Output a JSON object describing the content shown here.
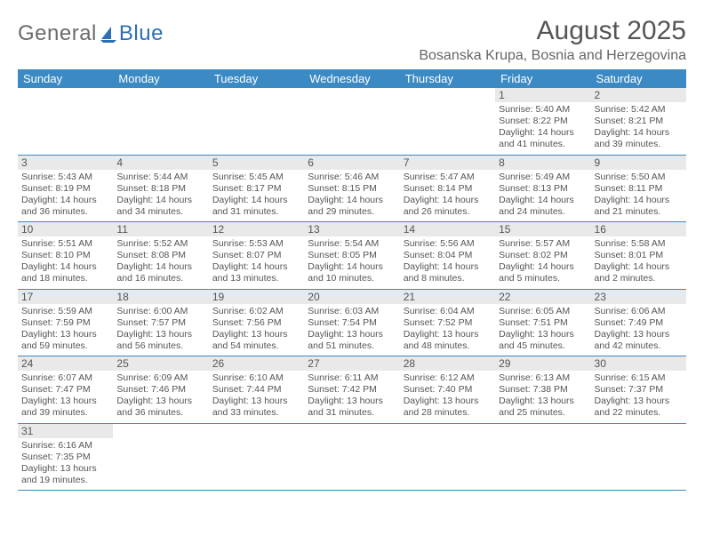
{
  "brand": {
    "part1": "General",
    "part2": "Blue"
  },
  "title": "August 2025",
  "subtitle": "Bosanska Krupa, Bosnia and Herzegovina",
  "colors": {
    "header_bg": "#3b8ac4",
    "header_text": "#ffffff",
    "daynum_bg": "#e9e9e9",
    "text": "#555555",
    "rule": "#3b8ac4",
    "logo_gray": "#6b6b6b",
    "logo_blue": "#2d6fb5"
  },
  "weekdays": [
    "Sunday",
    "Monday",
    "Tuesday",
    "Wednesday",
    "Thursday",
    "Friday",
    "Saturday"
  ],
  "grid": [
    [
      null,
      null,
      null,
      null,
      null,
      {
        "day": "1",
        "sunrise": "Sunrise: 5:40 AM",
        "sunset": "Sunset: 8:22 PM",
        "daylight": "Daylight: 14 hours and 41 minutes."
      },
      {
        "day": "2",
        "sunrise": "Sunrise: 5:42 AM",
        "sunset": "Sunset: 8:21 PM",
        "daylight": "Daylight: 14 hours and 39 minutes."
      }
    ],
    [
      {
        "day": "3",
        "sunrise": "Sunrise: 5:43 AM",
        "sunset": "Sunset: 8:19 PM",
        "daylight": "Daylight: 14 hours and 36 minutes."
      },
      {
        "day": "4",
        "sunrise": "Sunrise: 5:44 AM",
        "sunset": "Sunset: 8:18 PM",
        "daylight": "Daylight: 14 hours and 34 minutes."
      },
      {
        "day": "5",
        "sunrise": "Sunrise: 5:45 AM",
        "sunset": "Sunset: 8:17 PM",
        "daylight": "Daylight: 14 hours and 31 minutes."
      },
      {
        "day": "6",
        "sunrise": "Sunrise: 5:46 AM",
        "sunset": "Sunset: 8:15 PM",
        "daylight": "Daylight: 14 hours and 29 minutes."
      },
      {
        "day": "7",
        "sunrise": "Sunrise: 5:47 AM",
        "sunset": "Sunset: 8:14 PM",
        "daylight": "Daylight: 14 hours and 26 minutes."
      },
      {
        "day": "8",
        "sunrise": "Sunrise: 5:49 AM",
        "sunset": "Sunset: 8:13 PM",
        "daylight": "Daylight: 14 hours and 24 minutes."
      },
      {
        "day": "9",
        "sunrise": "Sunrise: 5:50 AM",
        "sunset": "Sunset: 8:11 PM",
        "daylight": "Daylight: 14 hours and 21 minutes."
      }
    ],
    [
      {
        "day": "10",
        "sunrise": "Sunrise: 5:51 AM",
        "sunset": "Sunset: 8:10 PM",
        "daylight": "Daylight: 14 hours and 18 minutes."
      },
      {
        "day": "11",
        "sunrise": "Sunrise: 5:52 AM",
        "sunset": "Sunset: 8:08 PM",
        "daylight": "Daylight: 14 hours and 16 minutes."
      },
      {
        "day": "12",
        "sunrise": "Sunrise: 5:53 AM",
        "sunset": "Sunset: 8:07 PM",
        "daylight": "Daylight: 14 hours and 13 minutes."
      },
      {
        "day": "13",
        "sunrise": "Sunrise: 5:54 AM",
        "sunset": "Sunset: 8:05 PM",
        "daylight": "Daylight: 14 hours and 10 minutes."
      },
      {
        "day": "14",
        "sunrise": "Sunrise: 5:56 AM",
        "sunset": "Sunset: 8:04 PM",
        "daylight": "Daylight: 14 hours and 8 minutes."
      },
      {
        "day": "15",
        "sunrise": "Sunrise: 5:57 AM",
        "sunset": "Sunset: 8:02 PM",
        "daylight": "Daylight: 14 hours and 5 minutes."
      },
      {
        "day": "16",
        "sunrise": "Sunrise: 5:58 AM",
        "sunset": "Sunset: 8:01 PM",
        "daylight": "Daylight: 14 hours and 2 minutes."
      }
    ],
    [
      {
        "day": "17",
        "sunrise": "Sunrise: 5:59 AM",
        "sunset": "Sunset: 7:59 PM",
        "daylight": "Daylight: 13 hours and 59 minutes."
      },
      {
        "day": "18",
        "sunrise": "Sunrise: 6:00 AM",
        "sunset": "Sunset: 7:57 PM",
        "daylight": "Daylight: 13 hours and 56 minutes."
      },
      {
        "day": "19",
        "sunrise": "Sunrise: 6:02 AM",
        "sunset": "Sunset: 7:56 PM",
        "daylight": "Daylight: 13 hours and 54 minutes."
      },
      {
        "day": "20",
        "sunrise": "Sunrise: 6:03 AM",
        "sunset": "Sunset: 7:54 PM",
        "daylight": "Daylight: 13 hours and 51 minutes."
      },
      {
        "day": "21",
        "sunrise": "Sunrise: 6:04 AM",
        "sunset": "Sunset: 7:52 PM",
        "daylight": "Daylight: 13 hours and 48 minutes."
      },
      {
        "day": "22",
        "sunrise": "Sunrise: 6:05 AM",
        "sunset": "Sunset: 7:51 PM",
        "daylight": "Daylight: 13 hours and 45 minutes."
      },
      {
        "day": "23",
        "sunrise": "Sunrise: 6:06 AM",
        "sunset": "Sunset: 7:49 PM",
        "daylight": "Daylight: 13 hours and 42 minutes."
      }
    ],
    [
      {
        "day": "24",
        "sunrise": "Sunrise: 6:07 AM",
        "sunset": "Sunset: 7:47 PM",
        "daylight": "Daylight: 13 hours and 39 minutes."
      },
      {
        "day": "25",
        "sunrise": "Sunrise: 6:09 AM",
        "sunset": "Sunset: 7:46 PM",
        "daylight": "Daylight: 13 hours and 36 minutes."
      },
      {
        "day": "26",
        "sunrise": "Sunrise: 6:10 AM",
        "sunset": "Sunset: 7:44 PM",
        "daylight": "Daylight: 13 hours and 33 minutes."
      },
      {
        "day": "27",
        "sunrise": "Sunrise: 6:11 AM",
        "sunset": "Sunset: 7:42 PM",
        "daylight": "Daylight: 13 hours and 31 minutes."
      },
      {
        "day": "28",
        "sunrise": "Sunrise: 6:12 AM",
        "sunset": "Sunset: 7:40 PM",
        "daylight": "Daylight: 13 hours and 28 minutes."
      },
      {
        "day": "29",
        "sunrise": "Sunrise: 6:13 AM",
        "sunset": "Sunset: 7:38 PM",
        "daylight": "Daylight: 13 hours and 25 minutes."
      },
      {
        "day": "30",
        "sunrise": "Sunrise: 6:15 AM",
        "sunset": "Sunset: 7:37 PM",
        "daylight": "Daylight: 13 hours and 22 minutes."
      }
    ],
    [
      {
        "day": "31",
        "sunrise": "Sunrise: 6:16 AM",
        "sunset": "Sunset: 7:35 PM",
        "daylight": "Daylight: 13 hours and 19 minutes."
      },
      null,
      null,
      null,
      null,
      null,
      null
    ]
  ]
}
